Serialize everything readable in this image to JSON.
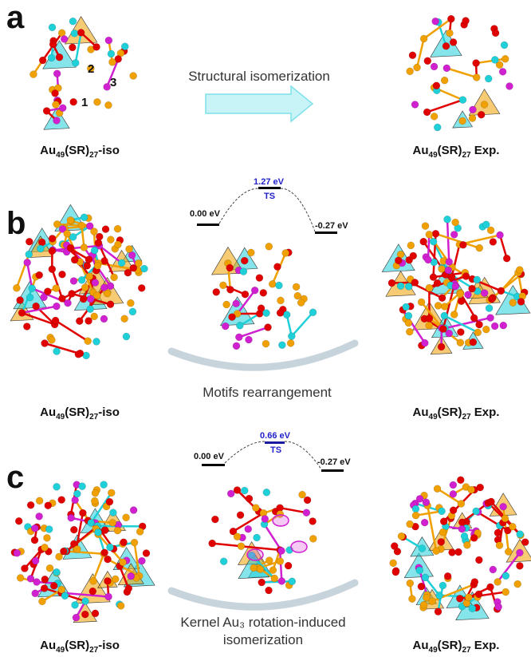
{
  "panels": {
    "a": {
      "label": "a",
      "left_caption": {
        "base": "Au",
        "sub1": "49",
        "mid": "(SR)",
        "sub2": "27",
        "suffix": "-iso"
      },
      "right_caption": {
        "base": "Au",
        "sub1": "49",
        "mid": "(SR)",
        "sub2": "27",
        "suffix": " Exp."
      },
      "arrow_text": "Structural isomerization",
      "site_numbers": [
        "1",
        "2",
        "3"
      ]
    },
    "b": {
      "label": "b",
      "left_caption": {
        "base": "Au",
        "sub1": "49",
        "mid": "(SR)",
        "sub2": "27",
        "suffix": "-iso"
      },
      "right_caption": {
        "base": "Au",
        "sub1": "49",
        "mid": "(SR)",
        "sub2": "27",
        "suffix": " Exp."
      },
      "energy": {
        "start": "0.00 eV",
        "ts_value": "1.27 eV",
        "ts_label": "TS",
        "end": "-0.27 eV"
      },
      "process_text": "Motifs rearrangement"
    },
    "c": {
      "label": "c",
      "left_caption": {
        "base": "Au",
        "sub1": "49",
        "mid": "(SR)",
        "sub2": "27",
        "suffix": "-iso"
      },
      "right_caption": {
        "base": "Au",
        "sub1": "49",
        "mid": "(SR)",
        "sub2": "27",
        "suffix": " Exp."
      },
      "energy": {
        "start": "0.00 eV",
        "ts_value": "0.66 eV",
        "ts_label": "TS",
        "end": "-0.27 eV"
      },
      "process_text_line1": "Kernel Au₃ rotation-induced",
      "process_text_line2": "isomerization"
    }
  },
  "colors": {
    "au_kernel": "#f0a000",
    "s": "#e00000",
    "au_motif": "#20d0d8",
    "au_staple": "#d020d0",
    "ts": "#2222cc"
  }
}
